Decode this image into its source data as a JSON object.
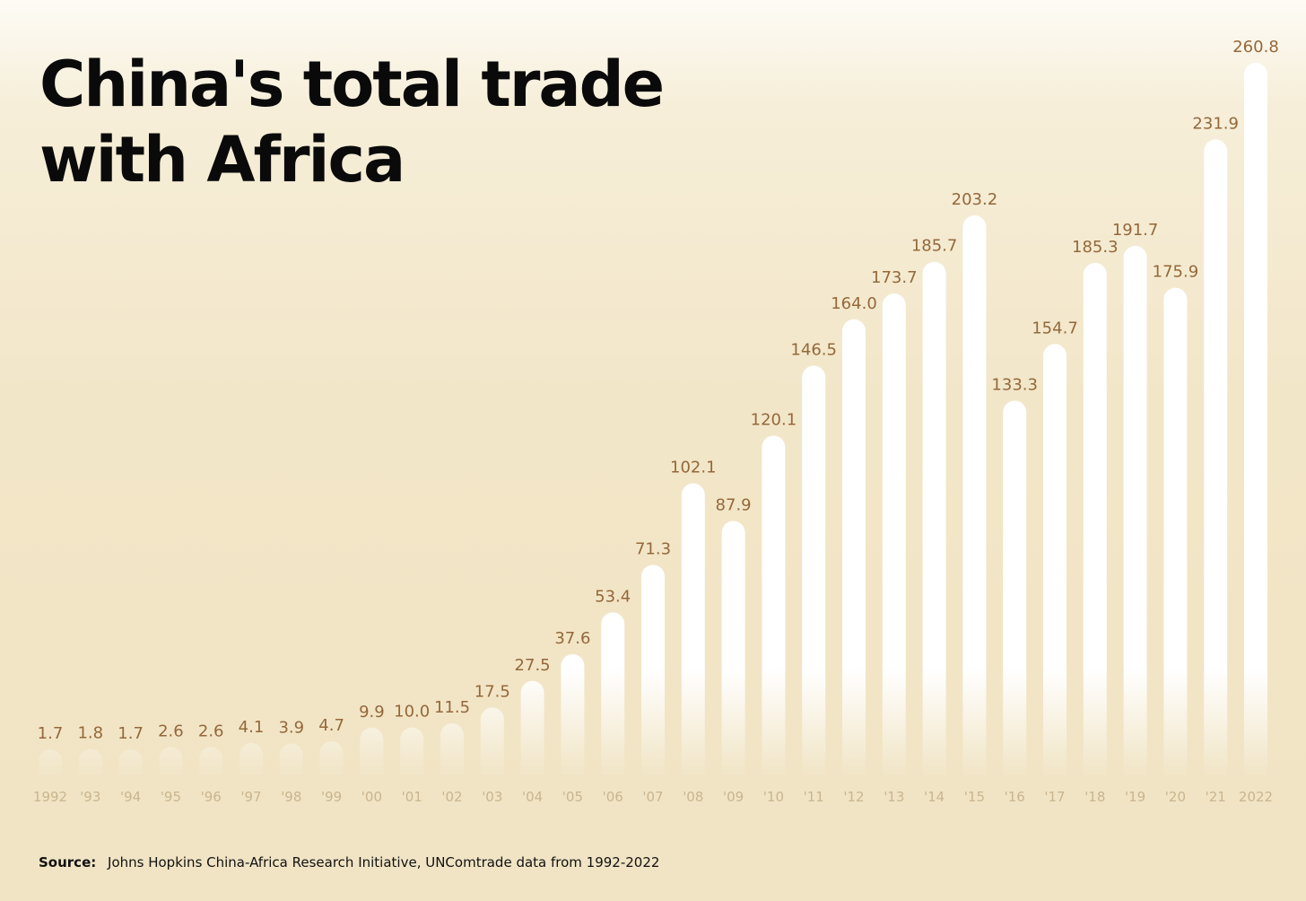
{
  "title_lines": [
    "China's total trade",
    "with Africa"
  ],
  "source": {
    "label": "Source:",
    "text": "Johns Hopkins China-Africa Research Initiative, UNComtrade data from 1992-2022"
  },
  "colors": {
    "bar": "#ffffff",
    "value_label": "#94683a",
    "tick_label": "#c9b58e",
    "title": "#0a0a0a"
  },
  "chart_data": {
    "type": "bar",
    "title": "China's total trade with Africa",
    "xlabel": "",
    "ylabel": "",
    "grid": false,
    "ylim": [
      0,
      260.8
    ],
    "categories": [
      "1992",
      "'93",
      "'94",
      "'95",
      "'96",
      "'97",
      "'98",
      "'99",
      "'00",
      "'01",
      "'02",
      "'03",
      "'04",
      "'05",
      "'06",
      "'07",
      "'08",
      "'09",
      "'10",
      "'11",
      "'12",
      "'13",
      "'14",
      "'15",
      "'16",
      "'17",
      "'18",
      "'19",
      "'20",
      "'21",
      "2022"
    ],
    "values": [
      1.7,
      1.8,
      1.7,
      2.6,
      2.6,
      4.1,
      3.9,
      4.7,
      9.9,
      10.0,
      11.5,
      17.5,
      27.5,
      37.6,
      53.4,
      71.3,
      102.1,
      87.9,
      120.1,
      146.5,
      164.0,
      173.7,
      185.7,
      203.2,
      133.3,
      154.7,
      185.3,
      191.7,
      175.9,
      231.9,
      260.8
    ],
    "value_labels": [
      "1.7",
      "1.8",
      "1.7",
      "2.6",
      "2.6",
      "4.1",
      "3.9",
      "4.7",
      "9.9",
      "10.0",
      "11.5",
      "17.5",
      "27.5",
      "37.6",
      "53.4",
      "71.3",
      "102.1",
      "87.9",
      "120.1",
      "146.5",
      "164.0",
      "173.7",
      "185.7",
      "203.2",
      "133.3",
      "154.7",
      "185.3",
      "191.7",
      "175.9",
      "231.9",
      "260.8"
    ]
  }
}
